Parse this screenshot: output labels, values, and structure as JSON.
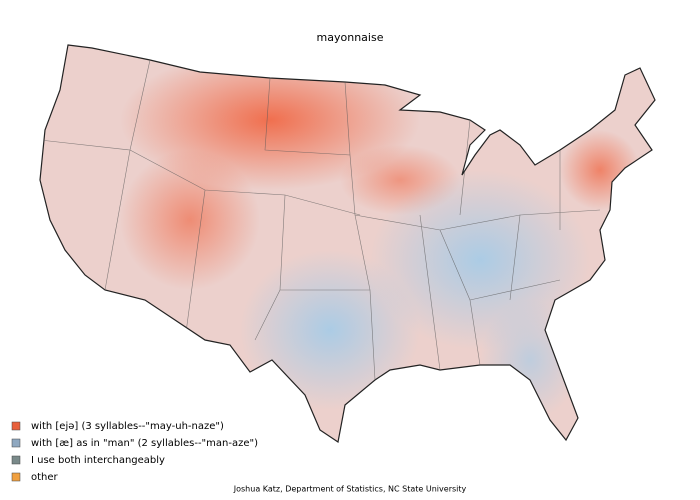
{
  "title": "mayonnaise",
  "legend": [
    {
      "label": "with [ejə] (3 syllables--\"may-uh-naze\")",
      "color": "#e8603c"
    },
    {
      "label": "with [æ] as in \"man\" (2 syllables--\"man-aze\")",
      "color": "#8fa8c0"
    },
    {
      "label": "I use both interchangeably",
      "color": "#7a8a8a"
    },
    {
      "label": "other",
      "color": "#f0a040"
    }
  ],
  "credit": "Joshua Katz, Department of Statistics, NC State University"
}
